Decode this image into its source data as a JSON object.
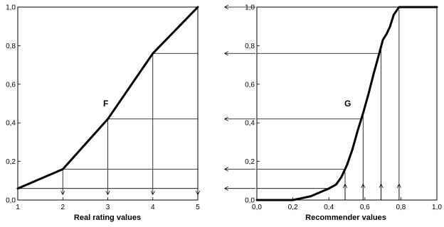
{
  "chart_data": [
    {
      "type": "line",
      "id": "F",
      "curve_label": "F",
      "xlabel": "Real rating values",
      "ylabel": "",
      "xlim": [
        1,
        5
      ],
      "ylim": [
        0,
        1
      ],
      "x_ticks": [
        "1",
        "2",
        "3",
        "4",
        "5"
      ],
      "y_ticks": [
        "0,0",
        "0,2",
        "0,4",
        "0,6",
        "0,8",
        "1,0"
      ],
      "grid": false,
      "series": [
        {
          "x": [
            1,
            2,
            3,
            4,
            5
          ],
          "y": [
            0.06,
            0.16,
            0.42,
            0.76,
            1.0
          ]
        }
      ],
      "down_arrows_x": [
        2,
        3,
        4,
        5
      ]
    },
    {
      "type": "line",
      "id": "G",
      "curve_label": "G",
      "xlabel": "Recommender values",
      "ylabel": "",
      "xlim": [
        0,
        1
      ],
      "ylim": [
        0,
        1
      ],
      "x_ticks": [
        "0,0",
        "0,2",
        "0,4",
        "0,6",
        "0,8",
        "1,0"
      ],
      "y_ticks": [
        "0,0",
        "0,2",
        "0,4",
        "0,6",
        "0,8",
        "1,0"
      ],
      "grid": false,
      "series": [
        {
          "x": [
            0.0,
            0.2,
            0.25,
            0.3,
            0.35,
            0.4,
            0.44,
            0.47,
            0.5,
            0.53,
            0.56,
            0.59,
            0.62,
            0.65,
            0.68,
            0.7,
            0.72,
            0.74,
            0.76,
            0.79,
            0.85,
            1.0
          ],
          "y": [
            0.0,
            0.0,
            0.01,
            0.02,
            0.04,
            0.06,
            0.08,
            0.12,
            0.18,
            0.26,
            0.36,
            0.45,
            0.55,
            0.66,
            0.76,
            0.83,
            0.86,
            0.9,
            0.96,
            1.0,
            1.0,
            1.0
          ]
        }
      ],
      "up_arrows_x": [
        0.49,
        0.59,
        0.69,
        0.79
      ]
    }
  ],
  "mapping_levels": [
    0.06,
    0.16,
    0.42,
    0.76,
    1.0
  ]
}
